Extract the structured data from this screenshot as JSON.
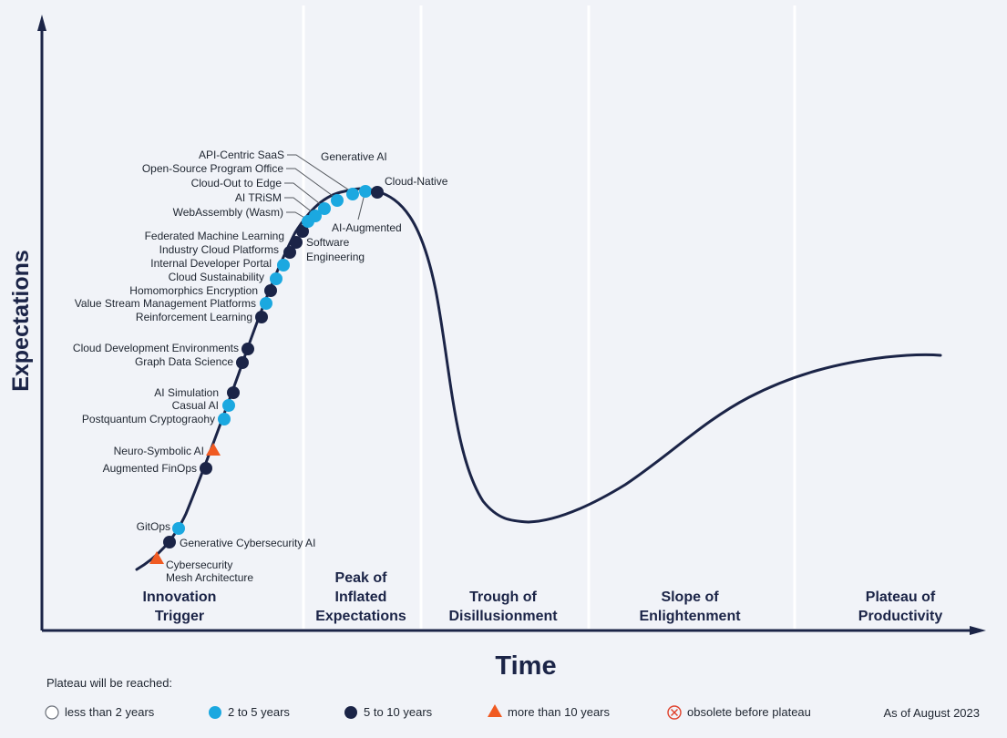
{
  "axes": {
    "y_label": "Expectations",
    "x_label": "Time"
  },
  "phases": [
    {
      "lines": [
        "Innovation",
        "Trigger"
      ]
    },
    {
      "lines": [
        "Peak of",
        "Inflated",
        "Expectations"
      ]
    },
    {
      "lines": [
        "Trough of",
        "Disillusionment"
      ]
    },
    {
      "lines": [
        "Slope of",
        "Enlightenment"
      ]
    },
    {
      "lines": [
        "Plateau of",
        "Productivity"
      ]
    }
  ],
  "colors": {
    "light_blue": "#1ba8e0",
    "dark_navy": "#1b2447",
    "orange": "#f05a22",
    "obsolete_red": "#e0402a",
    "curve": "#1b2447",
    "background": "#f1f3f8"
  },
  "technologies": [
    {
      "name": "Cybersecurity Mesh Architecture",
      "lines": [
        "Cybersecurity",
        "Mesh Architecture"
      ],
      "category": "more than 10 years",
      "marker": "triangle"
    },
    {
      "name": "Generative Cybersecurity AI",
      "lines": [
        "Generative Cybersecurity AI"
      ],
      "category": "5 to 10 years",
      "marker": "dark"
    },
    {
      "name": "GitOps",
      "lines": [
        "GitOps"
      ],
      "category": "2 to 5 years",
      "marker": "light"
    },
    {
      "name": "Augmented FinOps",
      "lines": [
        "Augmented FinOps"
      ],
      "category": "5 to 10 years",
      "marker": "dark"
    },
    {
      "name": "Neuro-Symbolic AI",
      "lines": [
        "Neuro-Symbolic AI"
      ],
      "category": "more than 10 years",
      "marker": "triangle"
    },
    {
      "name": "Postquantum Cryptograohy",
      "lines": [
        "Postquantum Cryptograohy"
      ],
      "category": "2 to 5 years",
      "marker": "light"
    },
    {
      "name": "Casual AI",
      "lines": [
        "Casual AI"
      ],
      "category": "2 to 5 years",
      "marker": "light"
    },
    {
      "name": "AI Simulation",
      "lines": [
        "AI Simulation"
      ],
      "category": "5 to 10 years",
      "marker": "dark"
    },
    {
      "name": "Graph Data Science",
      "lines": [
        "Graph Data Science"
      ],
      "category": "5 to 10 years",
      "marker": "dark"
    },
    {
      "name": "Cloud Development Environments",
      "lines": [
        "Cloud Development Environments"
      ],
      "category": "5 to 10 years",
      "marker": "dark"
    },
    {
      "name": "Reinforcement Learning",
      "lines": [
        "Reinforcement Learning"
      ],
      "category": "5 to 10 years",
      "marker": "dark"
    },
    {
      "name": "Value Stream Management Platforms",
      "lines": [
        "Value Stream Management Platforms"
      ],
      "category": "2 to 5 years",
      "marker": "light"
    },
    {
      "name": "Homomorphics Encryption",
      "lines": [
        "Homomorphics Encryption"
      ],
      "category": "5 to 10 years",
      "marker": "dark"
    },
    {
      "name": "Cloud Sustainability",
      "lines": [
        "Cloud Sustainability"
      ],
      "category": "2 to 5 years",
      "marker": "light"
    },
    {
      "name": "Internal Developer Portal",
      "lines": [
        "Internal Developer Portal"
      ],
      "category": "2 to 5 years",
      "marker": "light"
    },
    {
      "name": "Industry Cloud Platforms",
      "lines": [
        "Industry Cloud Platforms"
      ],
      "category": "5 to 10 years",
      "marker": "dark"
    },
    {
      "name": "Federated Machine Learning",
      "lines": [
        "Federated Machine Learning"
      ],
      "category": "5 to 10 years",
      "marker": "dark"
    },
    {
      "name": "Software Engineering",
      "lines": [
        "Software",
        "Engineering"
      ],
      "category": "5 to 10 years",
      "marker": "dark"
    },
    {
      "name": "WebAssembly (Wasm)",
      "lines": [
        "WebAssembly (Wasm)"
      ],
      "category": "2 to 5 years",
      "marker": "light"
    },
    {
      "name": "AI TRiSM",
      "lines": [
        "AI TRiSM"
      ],
      "category": "2 to 5 years",
      "marker": "light"
    },
    {
      "name": "Cloud-Out to Edge",
      "lines": [
        "Cloud-Out to Edge"
      ],
      "category": "2 to 5 years",
      "marker": "light"
    },
    {
      "name": "Open-Source Program Office",
      "lines": [
        "Open-Source Program Office"
      ],
      "category": "2 to 5 years",
      "marker": "light"
    },
    {
      "name": "API-Centric SaaS",
      "lines": [
        "API-Centric SaaS"
      ],
      "category": "2 to 5 years",
      "marker": "light"
    },
    {
      "name": "Generative AI",
      "lines": [
        "Generative AI"
      ],
      "category": "2 to 5 years",
      "marker": "light"
    },
    {
      "name": "AI-Augmented",
      "lines": [
        "AI-Augmented"
      ],
      "category": "2 to 5 years",
      "marker": "light"
    },
    {
      "name": "Cloud-Native",
      "lines": [
        "Cloud-Native"
      ],
      "category": "5 to 10 years",
      "marker": "dark"
    }
  ],
  "legend": {
    "title": "Plateau will be reached:",
    "items": [
      {
        "label": "less than 2 years",
        "marker": "open"
      },
      {
        "label": "2 to 5 years",
        "marker": "light"
      },
      {
        "label": "5 to 10 years",
        "marker": "dark"
      },
      {
        "label": "more than 10 years",
        "marker": "triangle"
      },
      {
        "label": "obsolete before plateau",
        "marker": "obsolete"
      }
    ],
    "as_of": "As of August 2023"
  }
}
